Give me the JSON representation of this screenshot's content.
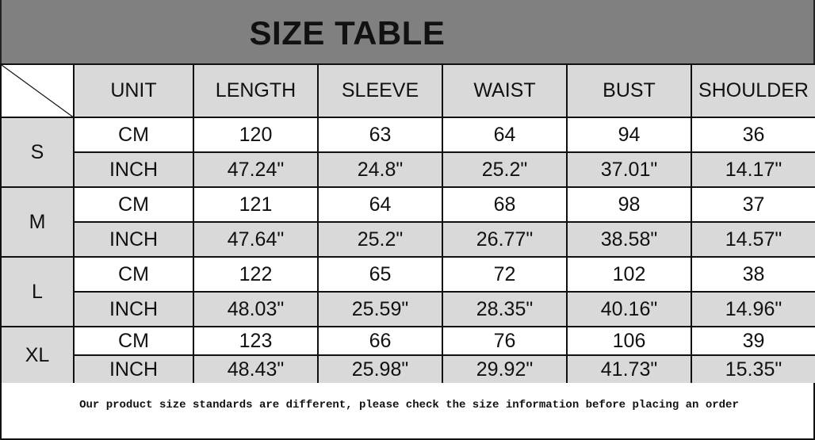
{
  "title": "SIZE TABLE",
  "headers": [
    "UNIT",
    "LENGTH",
    "SLEEVE",
    "WAIST",
    "BUST",
    "SHOULDER"
  ],
  "sizes": [
    {
      "size": "S",
      "rows": [
        [
          "CM",
          "120",
          "63",
          "64",
          "94",
          "36"
        ],
        [
          "INCH",
          "47.24\"",
          "24.8\"",
          "25.2\"",
          "37.01\"",
          "14.17\""
        ]
      ]
    },
    {
      "size": "M",
      "rows": [
        [
          "CM",
          "121",
          "64",
          "68",
          "98",
          "37"
        ],
        [
          "INCH",
          "47.64\"",
          "25.2\"",
          "26.77\"",
          "38.58\"",
          "14.57\""
        ]
      ]
    },
    {
      "size": "L",
      "rows": [
        [
          "CM",
          "122",
          "65",
          "72",
          "102",
          "38"
        ],
        [
          "INCH",
          "48.03\"",
          "25.59\"",
          "28.35\"",
          "40.16\"",
          "14.96\""
        ]
      ]
    },
    {
      "size": "XL",
      "rows": [
        [
          "CM",
          "123",
          "66",
          "76",
          "106",
          "39"
        ],
        [
          "INCH",
          "48.43\"",
          "25.98\"",
          "29.92\"",
          "41.73\"",
          "15.35\""
        ]
      ]
    }
  ],
  "note": "Our product size standards are different, please check the size information before placing an order"
}
